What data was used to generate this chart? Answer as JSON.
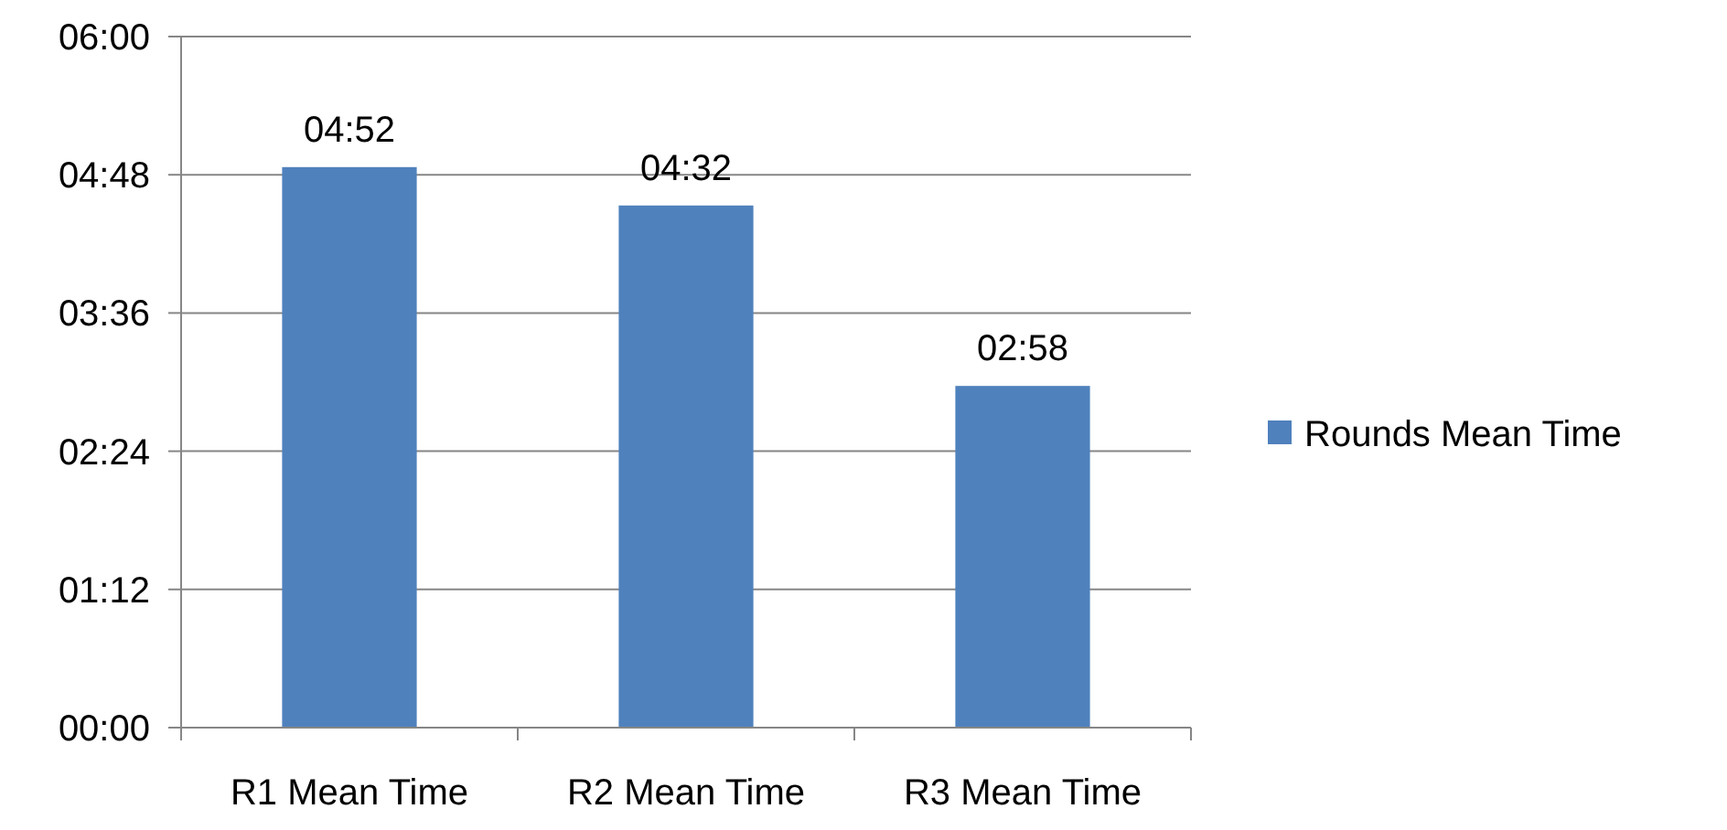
{
  "chart_data": {
    "type": "bar",
    "categories": [
      "R1 Mean Time",
      "R2 Mean Time",
      "R3 Mean Time"
    ],
    "series": [
      {
        "name": "Rounds Mean Time",
        "color": "#4f81bd",
        "values": [
          292,
          272,
          178
        ],
        "value_labels": [
          "04:52",
          "04:32",
          "02:58"
        ]
      }
    ],
    "ylim": [
      0,
      360
    ],
    "yticks": [
      {
        "value": 0,
        "label": "00:00"
      },
      {
        "value": 72,
        "label": "01:12"
      },
      {
        "value": 144,
        "label": "02:24"
      },
      {
        "value": 216,
        "label": "03:36"
      },
      {
        "value": 288,
        "label": "04:48"
      },
      {
        "value": 360,
        "label": "06:00"
      }
    ],
    "grid": "y",
    "legend": "right"
  }
}
